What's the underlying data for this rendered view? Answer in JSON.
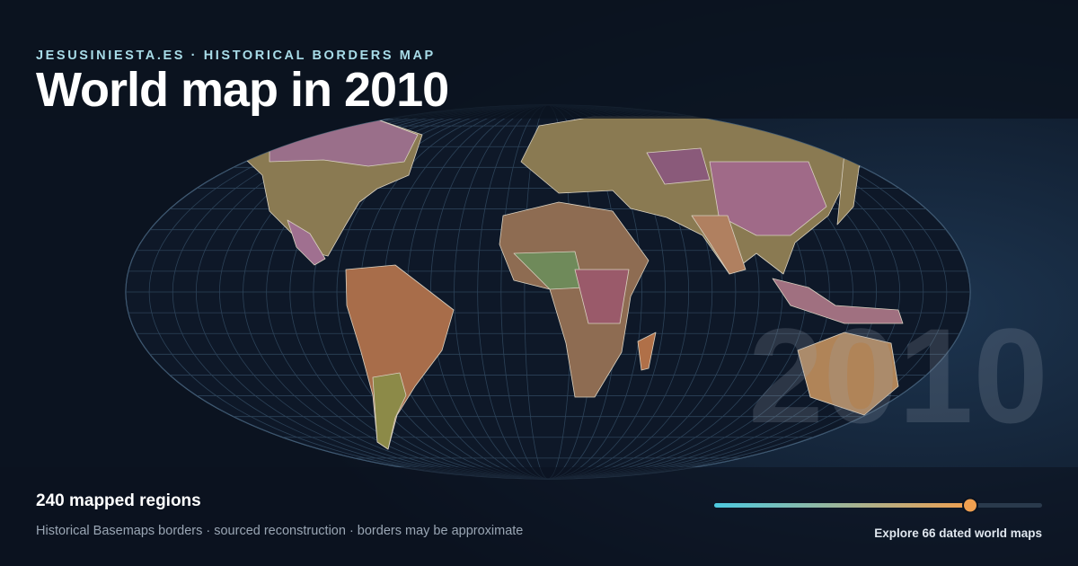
{
  "header": {
    "site": "JESUSINIESTA.ES · HISTORICAL BORDERS MAP",
    "title": "World map in 2010"
  },
  "watermark": "2010",
  "footer": {
    "regions": "240 mapped regions",
    "note": "Historical Basemaps borders · sourced reconstruction · borders may be approximate",
    "cta": "Explore 66 dated world maps"
  }
}
